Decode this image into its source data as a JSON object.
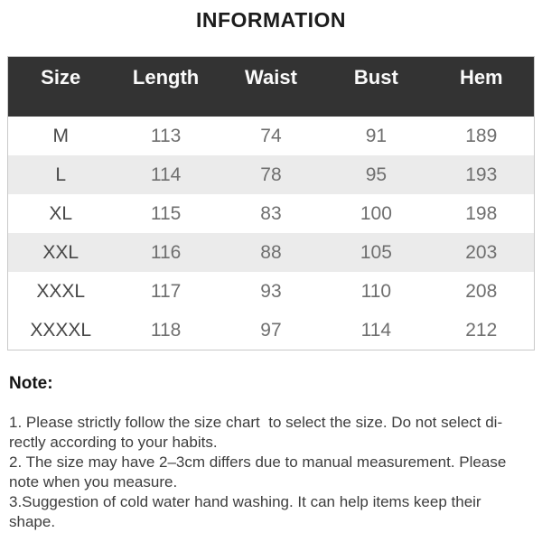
{
  "title": "INFORMATION",
  "chart_data": {
    "type": "table",
    "title": "INFORMATION",
    "columns": [
      "Size",
      "Length",
      "Waist",
      "Bust",
      "Hem"
    ],
    "rows": [
      [
        "M",
        "113",
        "74",
        "91",
        "189"
      ],
      [
        "L",
        "114",
        "78",
        "95",
        "193"
      ],
      [
        "XL",
        "115",
        "83",
        "100",
        "198"
      ],
      [
        "XXL",
        "116",
        "88",
        "105",
        "203"
      ],
      [
        "XXXL",
        "117",
        "93",
        "110",
        "208"
      ],
      [
        "XXXXL",
        "118",
        "97",
        "114",
        "212"
      ]
    ],
    "layout_hints": {
      "striped_rows": [
        "L",
        "XXL"
      ],
      "header_style": "dark"
    }
  },
  "notes": {
    "heading": "Note:",
    "items": [
      "1. Please strictly follow the size chart  to select the size. Do not select di-\nrectly according to your habits.",
      "2. The size may have 2–3cm differs due to manual measurement. Please\nnote when you measure.",
      "3.Suggestion of cold water hand washing. It can help items keep their\nshape."
    ]
  },
  "colors": {
    "header_bg": "#333333",
    "header_text": "#fafafa",
    "stripe_bg": "#ebebeb",
    "row_bg": "#ffffff",
    "table_border": "#c9c9c9",
    "value_text": "#6f6f6f",
    "size_label_text": "#474747",
    "title_text": "#1c1c1c",
    "note_text": "#3d3d3d"
  }
}
